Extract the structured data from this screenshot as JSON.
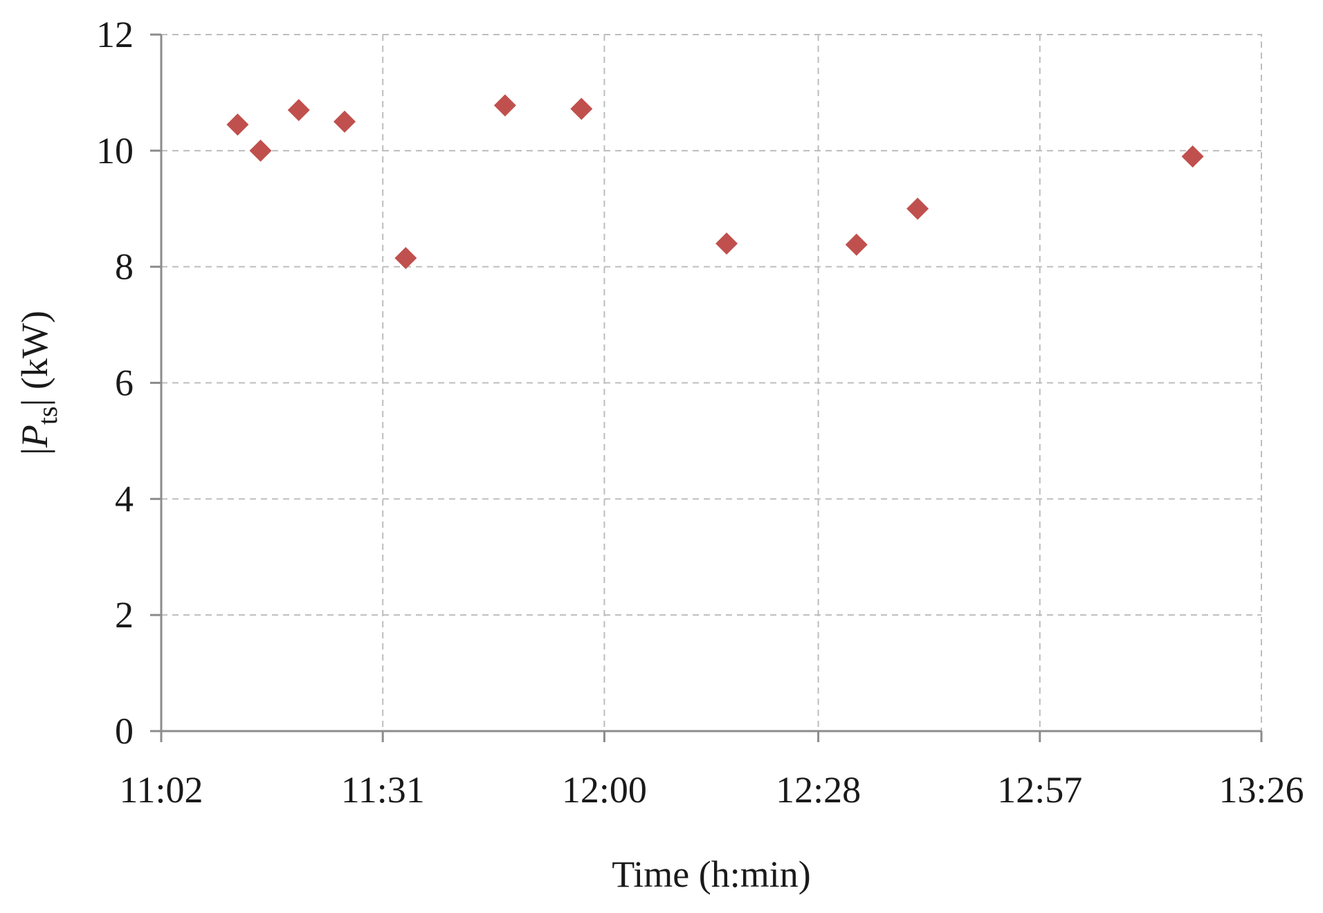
{
  "chart_data": {
    "type": "scatter",
    "xlabel": "Time  (h:min)",
    "ylabel": {
      "prefix": "|",
      "symbol": "P",
      "subscript": "ts",
      "suffix": "|  (kW)"
    },
    "x_unit": "h:min",
    "xlim": [
      "11:02",
      "13:26"
    ],
    "x_ticks": [
      "11:02",
      "11:31",
      "12:00",
      "12:28",
      "12:57",
      "13:26"
    ],
    "ylim": [
      0,
      12
    ],
    "y_ticks": [
      0,
      2,
      4,
      6,
      8,
      10,
      12
    ],
    "grid": true,
    "marker": "diamond",
    "marker_color": "#c0504d",
    "series": [
      {
        "points": [
          {
            "x": "11:12",
            "y": 10.45
          },
          {
            "x": "11:15",
            "y": 10.0
          },
          {
            "x": "11:20",
            "y": 10.7
          },
          {
            "x": "11:26",
            "y": 10.5
          },
          {
            "x": "11:34",
            "y": 8.15
          },
          {
            "x": "11:47",
            "y": 10.78
          },
          {
            "x": "11:57",
            "y": 10.72
          },
          {
            "x": "12:16",
            "y": 8.4
          },
          {
            "x": "12:33",
            "y": 8.38
          },
          {
            "x": "12:41",
            "y": 9.0
          },
          {
            "x": "13:17",
            "y": 9.9
          }
        ]
      }
    ]
  }
}
